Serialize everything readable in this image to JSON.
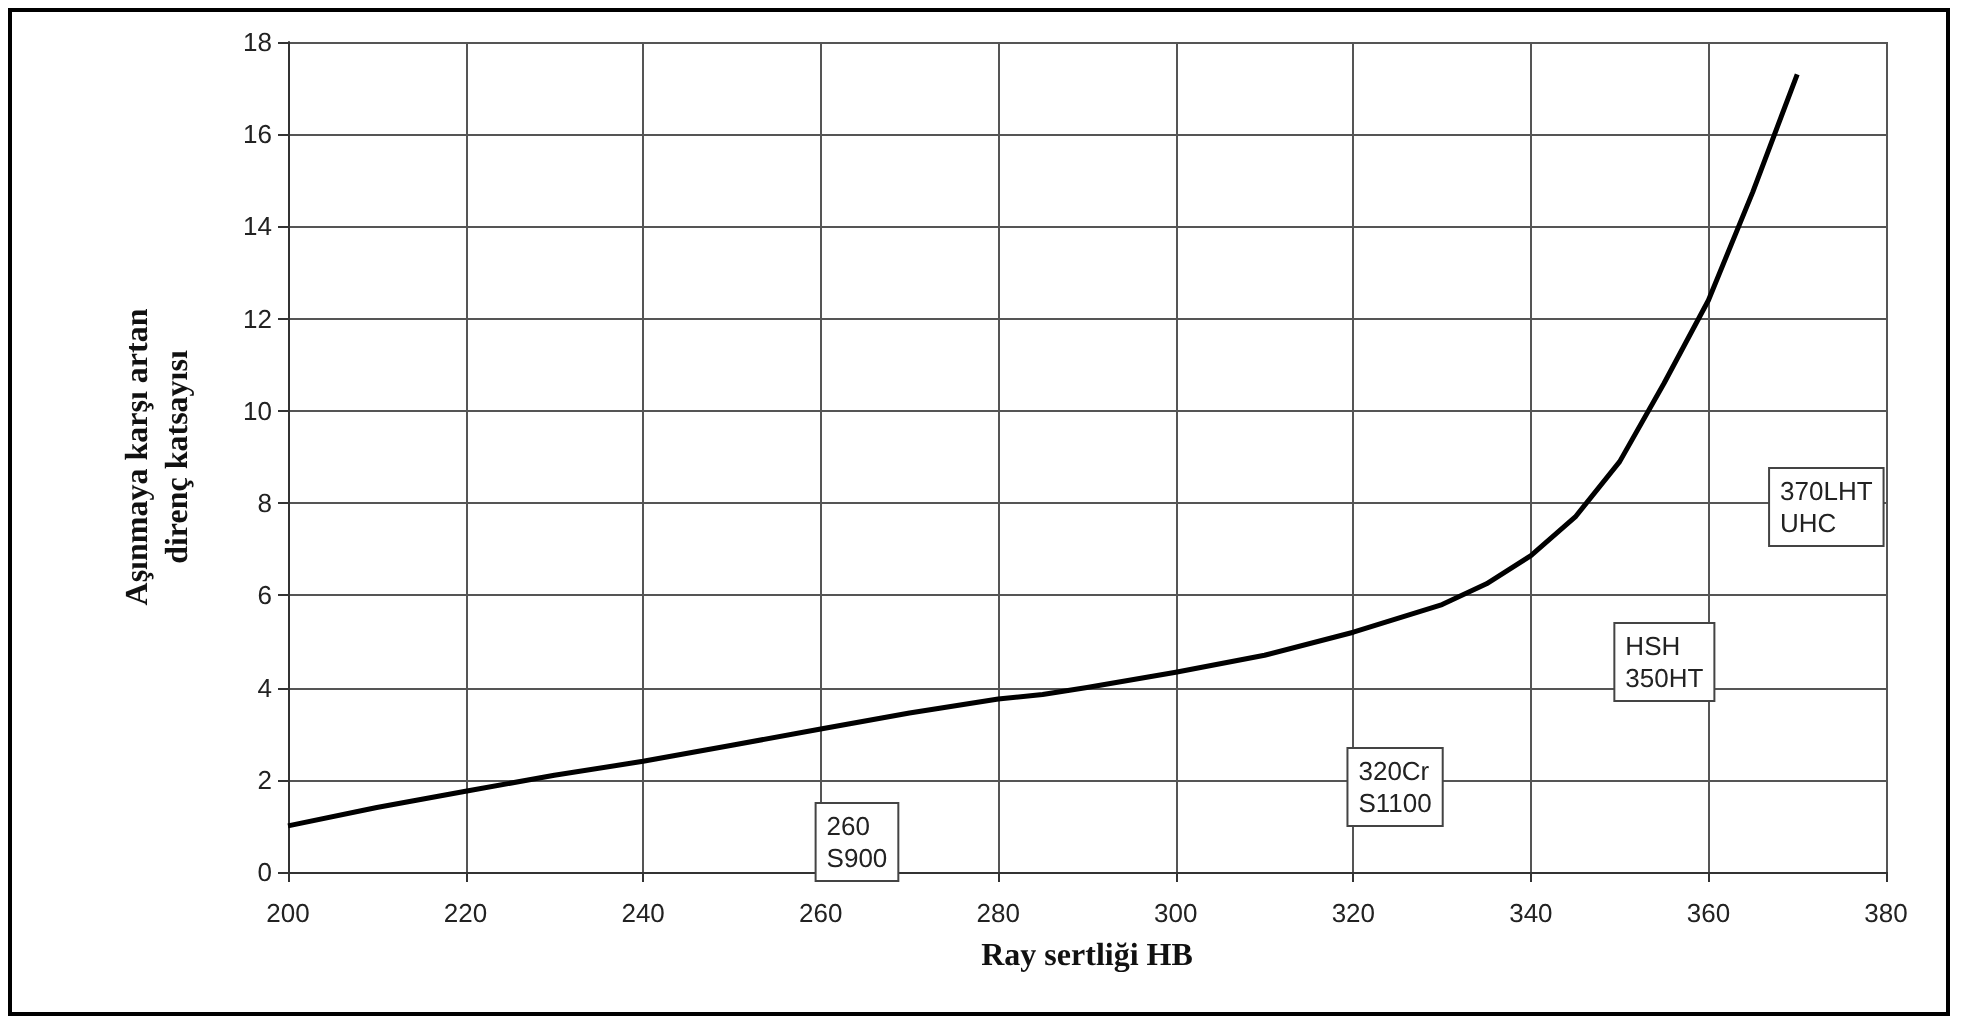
{
  "chart_data": {
    "type": "line",
    "xlabel": "Ray sertliği HB",
    "ylabel": "Aşınmaya karşı artan\ndirenç katsayısı",
    "x": [
      200,
      210,
      220,
      230,
      240,
      250,
      260,
      270,
      280,
      285,
      290,
      300,
      310,
      320,
      330,
      335,
      340,
      345,
      350,
      355,
      360,
      365,
      370
    ],
    "series": [
      {
        "color": "#000000",
        "values": [
          1.0,
          1.4,
          1.75,
          2.1,
          2.4,
          2.75,
          3.1,
          3.45,
          3.75,
          3.85,
          4.0,
          4.33,
          4.7,
          5.2,
          5.8,
          6.25,
          6.86,
          7.7,
          8.9,
          10.6,
          12.4,
          14.75,
          17.3
        ]
      }
    ],
    "xlim": [
      200,
      380
    ],
    "xticks": [
      200,
      220,
      240,
      260,
      280,
      300,
      320,
      340,
      360,
      380
    ],
    "ylim": [
      0,
      18
    ],
    "yticks": [
      0,
      2,
      4,
      6,
      8,
      10,
      12,
      14,
      16,
      18
    ],
    "annotations": [
      "260\nS900",
      "320Cr\nS1100",
      "HSH\n350HT",
      "370LHT\nUHC"
    ],
    "grid": true,
    "marker": "none",
    "line_style": "solid"
  }
}
